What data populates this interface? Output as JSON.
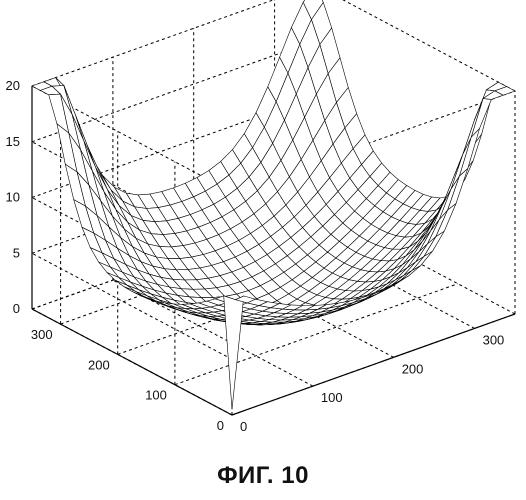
{
  "chart_data": {
    "type": "surface3d",
    "title": "",
    "xlabel": "",
    "ylabel": "",
    "zlabel": "",
    "x_ticks": [
      0,
      100,
      200,
      300
    ],
    "y_ticks": [
      0,
      100,
      200,
      300
    ],
    "z_ticks": [
      0,
      5,
      10,
      15,
      20
    ],
    "xlim": [
      0,
      350
    ],
    "ylim": [
      0,
      350
    ],
    "zlim": [
      0,
      20
    ],
    "grid": true,
    "surface": {
      "description": "bowl-shaped mesh rising to corner peaks",
      "peak_value": 19,
      "center_min": 0,
      "peaks": [
        {
          "x": 0,
          "y": 350,
          "z": 19
        },
        {
          "x": 350,
          "y": 0,
          "z": 19
        },
        {
          "x": 350,
          "y": 350,
          "z": 14
        }
      ]
    },
    "colors": {
      "line": "#000000",
      "grid": "#000000",
      "background": "#ffffff"
    }
  },
  "caption": "ФИГ. 10"
}
